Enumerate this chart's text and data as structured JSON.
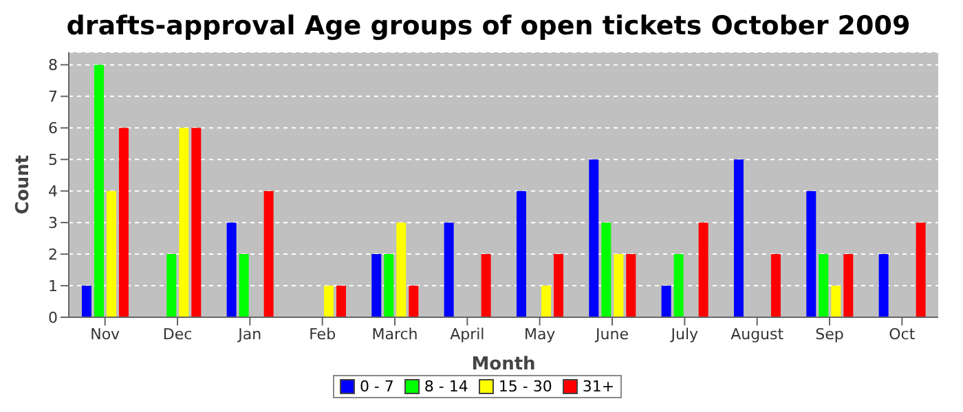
{
  "chart_data": {
    "type": "bar",
    "title": "drafts-approval Age groups of open tickets October 2009",
    "xlabel": "Month",
    "ylabel": "Count",
    "categories": [
      "Nov",
      "Dec",
      "Jan",
      "Feb",
      "March",
      "April",
      "May",
      "June",
      "July",
      "August",
      "Sep",
      "Oct"
    ],
    "series": [
      {
        "name": "0 - 7",
        "color": "#0000ff",
        "values": [
          1,
          0,
          3,
          0,
          2,
          3,
          4,
          5,
          1,
          5,
          4,
          2
        ]
      },
      {
        "name": "8 - 14",
        "color": "#00ff00",
        "values": [
          8,
          2,
          2,
          0,
          2,
          0,
          0,
          3,
          2,
          0,
          2,
          0
        ]
      },
      {
        "name": "15 - 30",
        "color": "#ffff00",
        "values": [
          4,
          6,
          0,
          1,
          3,
          0,
          1,
          2,
          0,
          0,
          1,
          0
        ]
      },
      {
        "name": "31+",
        "color": "#ff0000",
        "values": [
          6,
          6,
          4,
          1,
          1,
          2,
          2,
          2,
          3,
          2,
          2,
          3
        ]
      }
    ],
    "ylim": [
      0,
      8.4
    ],
    "yticks": [
      0,
      1,
      2,
      3,
      4,
      5,
      6,
      7,
      8
    ],
    "grid": "y",
    "legend": "bottom"
  }
}
